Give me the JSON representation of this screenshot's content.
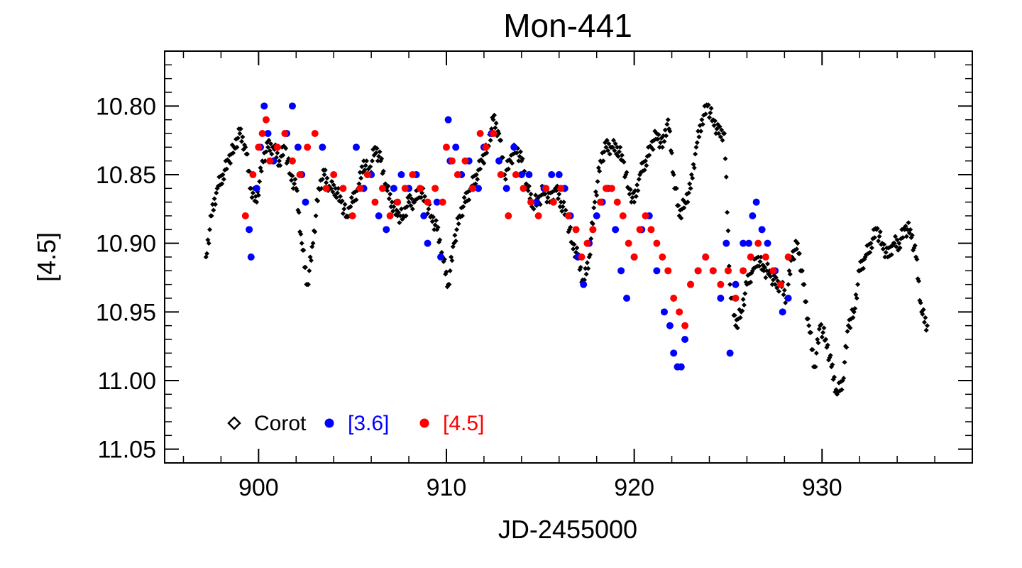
{
  "chart_data": {
    "type": "scatter",
    "title": "Mon-441",
    "xlabel": "JD-2455000",
    "ylabel": "[4.5]",
    "xlim": [
      895,
      938
    ],
    "ylim": [
      11.06,
      10.76
    ],
    "y_inverted": true,
    "x_ticks": [
      900,
      910,
      920,
      930
    ],
    "x_tick_labels": [
      "900",
      "910",
      "920",
      "930"
    ],
    "y_ticks": [
      10.8,
      10.85,
      10.9,
      10.95,
      11.0,
      11.05
    ],
    "y_tick_labels": [
      "10.80",
      "10.85",
      "10.90",
      "10.95",
      "11.00",
      "11.05"
    ],
    "legend": {
      "placement": "bottom-left",
      "entries": [
        "Corot",
        "[3.6]",
        "[4.5]"
      ]
    },
    "series": [
      {
        "name": "Corot",
        "marker": "diamond",
        "color": "#000000",
        "note": "dense continuous light curve, sampled",
        "x": [
          897.2,
          897.5,
          897.8,
          898.1,
          898.4,
          898.7,
          899.0,
          899.3,
          899.6,
          899.9,
          900.2,
          900.5,
          900.8,
          901.1,
          901.4,
          901.7,
          902.0,
          902.3,
          902.6,
          902.9,
          903.2,
          903.5,
          903.8,
          904.1,
          904.4,
          904.7,
          905.0,
          905.3,
          905.6,
          905.9,
          906.2,
          906.5,
          906.8,
          907.1,
          907.4,
          907.7,
          908.0,
          908.3,
          908.6,
          908.9,
          909.2,
          909.5,
          909.8,
          910.1,
          910.4,
          910.7,
          911.0,
          911.3,
          911.6,
          911.9,
          912.2,
          912.5,
          912.8,
          913.1,
          913.4,
          913.7,
          914.0,
          914.3,
          914.6,
          914.9,
          915.2,
          915.5,
          915.8,
          916.1,
          916.4,
          916.7,
          917.0,
          917.3,
          917.6,
          917.9,
          918.2,
          918.5,
          918.8,
          919.1,
          919.4,
          919.7,
          920.0,
          920.3,
          920.6,
          920.9,
          921.2,
          921.5,
          921.8,
          922.1,
          922.4,
          922.7,
          923.0,
          923.3,
          923.6,
          923.9,
          924.2,
          924.5,
          924.8,
          925.1,
          925.4,
          925.7,
          926.0,
          926.3,
          926.6,
          926.9,
          927.2,
          927.5,
          927.8,
          928.1,
          928.4,
          928.7,
          929.0,
          929.3,
          929.6,
          929.9,
          930.2,
          930.5,
          930.8,
          931.1,
          931.4,
          931.7,
          932.0,
          932.3,
          932.6,
          932.9,
          933.2,
          933.5,
          933.8,
          934.1,
          934.4,
          934.7,
          935.0,
          935.3,
          935.6
        ],
        "y": [
          10.91,
          10.88,
          10.86,
          10.85,
          10.84,
          10.83,
          10.82,
          10.83,
          10.86,
          10.87,
          10.84,
          10.83,
          10.83,
          10.84,
          10.83,
          10.85,
          10.86,
          10.9,
          10.93,
          10.9,
          10.86,
          10.85,
          10.86,
          10.86,
          10.87,
          10.88,
          10.87,
          10.86,
          10.84,
          10.85,
          10.83,
          10.84,
          10.86,
          10.87,
          10.88,
          10.88,
          10.87,
          10.87,
          10.86,
          10.87,
          10.88,
          10.89,
          10.91,
          10.93,
          10.9,
          10.88,
          10.87,
          10.86,
          10.85,
          10.84,
          10.83,
          10.81,
          10.82,
          10.85,
          10.84,
          10.83,
          10.84,
          10.86,
          10.87,
          10.87,
          10.86,
          10.87,
          10.86,
          10.87,
          10.88,
          10.9,
          10.91,
          10.93,
          10.91,
          10.87,
          10.84,
          10.83,
          10.83,
          10.83,
          10.84,
          10.86,
          10.87,
          10.85,
          10.84,
          10.83,
          10.82,
          10.83,
          10.81,
          10.85,
          10.88,
          10.87,
          10.86,
          10.83,
          10.81,
          10.8,
          10.81,
          10.82,
          10.82,
          10.93,
          10.96,
          10.95,
          10.93,
          10.92,
          10.91,
          10.92,
          10.92,
          10.93,
          10.93,
          10.94,
          10.91,
          10.9,
          10.93,
          10.96,
          10.99,
          10.96,
          10.97,
          10.99,
          11.01,
          11.0,
          10.96,
          10.95,
          10.92,
          10.91,
          10.9,
          10.89,
          10.9,
          10.91,
          10.9,
          10.9,
          10.89,
          10.89,
          10.91,
          10.95,
          10.96
        ]
      },
      {
        "name": "[3.6]",
        "marker": "filled-circle",
        "color": "#0000ff",
        "x": [
          899.5,
          899.6,
          899.9,
          900.1,
          900.3,
          900.5,
          900.8,
          901.5,
          901.8,
          902.1,
          902.3,
          902.5,
          903.4,
          905.2,
          905.6,
          906.0,
          906.4,
          906.8,
          907.2,
          907.6,
          908.0,
          908.4,
          908.8,
          909.0,
          909.5,
          909.7,
          910.1,
          910.2,
          910.5,
          910.8,
          911.2,
          911.7,
          912.0,
          912.4,
          912.8,
          913.2,
          913.6,
          914.0,
          914.4,
          914.8,
          915.2,
          915.6,
          916.0,
          916.3,
          916.6,
          917.0,
          917.3,
          917.6,
          918.0,
          918.3,
          918.6,
          919.0,
          919.3,
          919.6,
          920.0,
          920.4,
          920.8,
          921.2,
          921.6,
          921.9,
          922.1,
          922.3,
          922.5,
          922.7,
          923.0,
          923.4,
          923.8,
          924.2,
          924.6,
          924.9,
          925.1,
          925.4,
          925.8,
          926.1,
          926.3,
          926.5,
          926.8,
          927.1,
          927.5,
          927.9,
          928.2
        ],
        "y": [
          10.89,
          10.91,
          10.86,
          10.83,
          10.8,
          10.82,
          10.84,
          10.82,
          10.8,
          10.83,
          10.85,
          10.87,
          10.83,
          10.83,
          10.86,
          10.85,
          10.88,
          10.89,
          10.86,
          10.85,
          10.86,
          10.85,
          10.88,
          10.9,
          10.87,
          10.91,
          10.81,
          10.84,
          10.83,
          10.85,
          10.84,
          10.86,
          10.83,
          10.82,
          10.84,
          10.86,
          10.83,
          10.85,
          10.85,
          10.87,
          10.86,
          10.85,
          10.85,
          10.86,
          10.88,
          10.91,
          10.93,
          10.9,
          10.88,
          10.87,
          10.86,
          10.89,
          10.92,
          10.94,
          10.91,
          10.89,
          10.88,
          10.92,
          10.95,
          10.96,
          10.98,
          10.99,
          10.99,
          10.97,
          10.93,
          10.92,
          10.91,
          10.92,
          10.94,
          10.9,
          10.98,
          10.93,
          10.9,
          10.9,
          10.88,
          10.87,
          10.89,
          10.9,
          10.92,
          10.95,
          10.94
        ]
      },
      {
        "name": "[4.5]",
        "marker": "filled-circle",
        "color": "#ff0000",
        "x": [
          899.3,
          899.7,
          900.0,
          900.2,
          900.4,
          900.6,
          901.0,
          901.4,
          901.8,
          902.2,
          902.6,
          903.0,
          903.6,
          904.0,
          904.5,
          905.0,
          905.4,
          905.8,
          906.2,
          906.6,
          907.0,
          907.4,
          907.8,
          908.2,
          908.6,
          909.0,
          909.4,
          909.8,
          910.0,
          910.3,
          910.6,
          911.0,
          911.4,
          911.8,
          912.1,
          912.5,
          912.9,
          913.3,
          913.7,
          914.1,
          914.5,
          914.9,
          915.3,
          915.7,
          916.1,
          916.5,
          916.9,
          917.2,
          917.5,
          917.8,
          918.2,
          918.5,
          918.8,
          919.1,
          919.4,
          919.7,
          920.0,
          920.3,
          920.6,
          920.9,
          921.2,
          921.5,
          921.8,
          922.1,
          922.4,
          922.7,
          923.0,
          923.4,
          923.8,
          924.2,
          924.6,
          925.0,
          925.4,
          925.8,
          926.2,
          926.6,
          927.0,
          927.4,
          927.8,
          928.2
        ],
        "y": [
          10.88,
          10.85,
          10.83,
          10.82,
          10.81,
          10.84,
          10.83,
          10.82,
          10.84,
          10.85,
          10.83,
          10.82,
          10.86,
          10.85,
          10.86,
          10.88,
          10.86,
          10.85,
          10.87,
          10.86,
          10.88,
          10.87,
          10.86,
          10.85,
          10.86,
          10.87,
          10.86,
          10.87,
          10.83,
          10.84,
          10.85,
          10.84,
          10.86,
          10.82,
          10.83,
          10.82,
          10.85,
          10.88,
          10.85,
          10.86,
          10.87,
          10.88,
          10.86,
          10.87,
          10.86,
          10.88,
          10.89,
          10.91,
          10.9,
          10.89,
          10.87,
          10.86,
          10.86,
          10.87,
          10.88,
          10.9,
          10.91,
          10.89,
          10.88,
          10.89,
          10.9,
          10.91,
          10.92,
          10.94,
          10.95,
          10.96,
          10.93,
          10.92,
          10.91,
          10.92,
          10.93,
          10.92,
          10.94,
          10.92,
          10.91,
          10.9,
          10.91,
          10.92,
          10.93,
          10.91
        ]
      }
    ]
  }
}
